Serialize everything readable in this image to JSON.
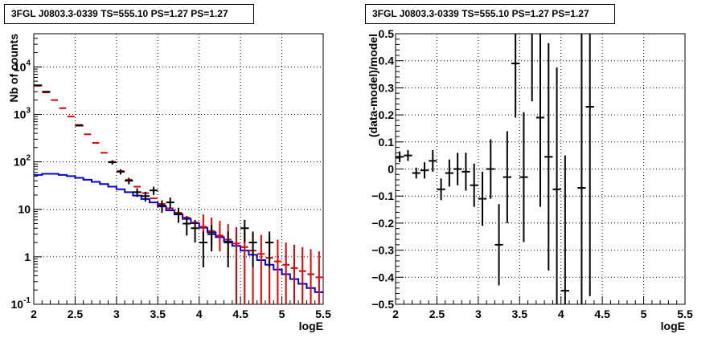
{
  "chart_data": [
    {
      "type": "line",
      "title": "3FGL J0803.3-0339 TS=555.10 PS=1.27 PS=1.27",
      "xlabel": "logE",
      "ylabel": "Nb of counts",
      "xlim": [
        2,
        5.5
      ],
      "ylim": [
        0.1,
        50000
      ],
      "yscale": "log",
      "grid": true,
      "x_ticks": [
        "2",
        "2.5",
        "3",
        "3.5",
        "4",
        "4.5",
        "5",
        "5.5"
      ],
      "y_ticks": [
        "10^{-1}",
        "1",
        "10",
        "10^{2}",
        "10^{3}",
        "10^{4}"
      ],
      "model_total": {
        "color": "#e00000",
        "x": [
          2.05,
          2.15,
          2.25,
          2.35,
          2.45,
          2.55,
          2.65,
          2.75,
          2.85,
          2.95,
          3.05,
          3.15,
          3.25,
          3.35,
          3.45,
          3.55,
          3.65,
          3.75,
          3.85,
          3.95,
          4.05,
          4.15,
          4.25,
          4.35,
          4.45,
          4.55,
          4.65,
          4.75,
          4.85,
          4.95,
          5.05,
          5.15,
          5.25,
          5.35,
          5.45
        ],
        "y": [
          4000,
          2900,
          2000,
          1350,
          900,
          600,
          380,
          250,
          155,
          100,
          64,
          42,
          30,
          22,
          17,
          13,
          10.5,
          8.5,
          6.7,
          5.3,
          4.3,
          3.5,
          2.8,
          2.3,
          1.9,
          1.6,
          1.35,
          1.15,
          0.95,
          0.8,
          0.68,
          0.58,
          0.5,
          0.43,
          0.37
        ],
        "err_lo": [
          null,
          null,
          null,
          null,
          null,
          null,
          null,
          null,
          null,
          null,
          null,
          null,
          null,
          null,
          null,
          null,
          null,
          null,
          null,
          null,
          2.2,
          1.7,
          1.3,
          1.0,
          0.1,
          0.1,
          0.1,
          0.1,
          0.1,
          0.1,
          0.1,
          0.1,
          0.1,
          0.1,
          0.1
        ],
        "err_hi": [
          null,
          null,
          null,
          null,
          null,
          null,
          null,
          null,
          null,
          null,
          null,
          null,
          null,
          null,
          null,
          null,
          null,
          null,
          null,
          null,
          7.8,
          6.7,
          5.7,
          4.9,
          4.2,
          3.7,
          3.3,
          2.9,
          2.6,
          2.3,
          2.0,
          1.8,
          1.6,
          1.45,
          1.3
        ]
      },
      "model_source": {
        "color": "#0000dd",
        "x": [
          2.0,
          2.1,
          2.2,
          2.3,
          2.4,
          2.5,
          2.6,
          2.7,
          2.8,
          2.9,
          3.0,
          3.1,
          3.2,
          3.3,
          3.4,
          3.5,
          3.6,
          3.7,
          3.8,
          3.9,
          4.0,
          4.1,
          4.2,
          4.3,
          4.4,
          4.5,
          4.6,
          4.7,
          4.8,
          4.9,
          5.0,
          5.1,
          5.2,
          5.3,
          5.4,
          5.5
        ],
        "y": [
          53,
          56,
          56,
          53,
          50,
          46,
          42,
          38,
          34,
          30,
          26.5,
          23,
          19.5,
          16.5,
          14,
          11.5,
          9.5,
          7.8,
          6.3,
          5.1,
          4.1,
          3.3,
          2.6,
          2.1,
          1.7,
          1.35,
          1.1,
          0.85,
          0.68,
          0.54,
          0.43,
          0.34,
          0.27,
          0.22,
          0.18,
          0.18
        ]
      },
      "data_points": {
        "color": "#000000",
        "x": [
          2.05,
          2.15,
          2.55,
          2.95,
          3.05,
          3.15,
          3.25,
          3.35,
          3.45,
          3.55,
          3.65,
          3.75,
          3.85,
          3.95,
          4.05,
          4.15,
          4.35,
          4.55,
          4.65,
          4.85
        ],
        "y": [
          4100,
          3000,
          580,
          98,
          62,
          40,
          23,
          19,
          25,
          12,
          14,
          8,
          5,
          4,
          2,
          3,
          2,
          4,
          2,
          2
        ],
        "err": [
          65,
          55,
          24,
          10,
          8,
          6.3,
          4.8,
          4.4,
          5,
          3.5,
          3.7,
          2.8,
          2.2,
          2,
          1.4,
          1.7,
          1.4,
          2,
          1.4,
          1.4
        ]
      }
    },
    {
      "type": "scatter",
      "title": "3FGL J0803.3-0339 TS=555.10 PS=1.27 PS=1.27",
      "xlabel": "logE",
      "ylabel": "(data-model)/model",
      "xlim": [
        2,
        5.5
      ],
      "ylim": [
        -0.5,
        0.5
      ],
      "grid": true,
      "x_ticks": [
        "2",
        "2.5",
        "3",
        "3.5",
        "4",
        "4.5",
        "5",
        "5.5"
      ],
      "y_ticks": [
        "−0.5",
        "−0.4",
        "−0.3",
        "−0.2",
        "−0.1",
        "0",
        "0.1",
        "0.2",
        "0.3",
        "0.4",
        "0.5"
      ],
      "points": {
        "color": "#000000",
        "x": [
          2.05,
          2.15,
          2.25,
          2.35,
          2.45,
          2.55,
          2.65,
          2.75,
          2.85,
          2.95,
          3.05,
          3.15,
          3.25,
          3.35,
          3.45,
          3.55,
          3.65,
          3.75,
          3.85,
          3.95,
          4.05,
          4.25,
          4.35
        ],
        "y": [
          0.045,
          0.05,
          -0.015,
          -0.005,
          0.03,
          -0.075,
          -0.015,
          0.0,
          -0.01,
          -0.06,
          -0.11,
          0.0,
          -0.28,
          -0.03,
          0.39,
          -0.03,
          0.55,
          0.19,
          0.045,
          -0.075,
          -0.45,
          -0.07,
          0.23
        ],
        "err": [
          0.02,
          0.02,
          0.02,
          0.03,
          0.04,
          0.04,
          0.05,
          0.06,
          0.07,
          0.08,
          0.1,
          0.11,
          0.15,
          0.17,
          0.2,
          0.24,
          0.3,
          0.33,
          0.42,
          0.45,
          0.5,
          0.6,
          0.7
        ]
      }
    }
  ]
}
